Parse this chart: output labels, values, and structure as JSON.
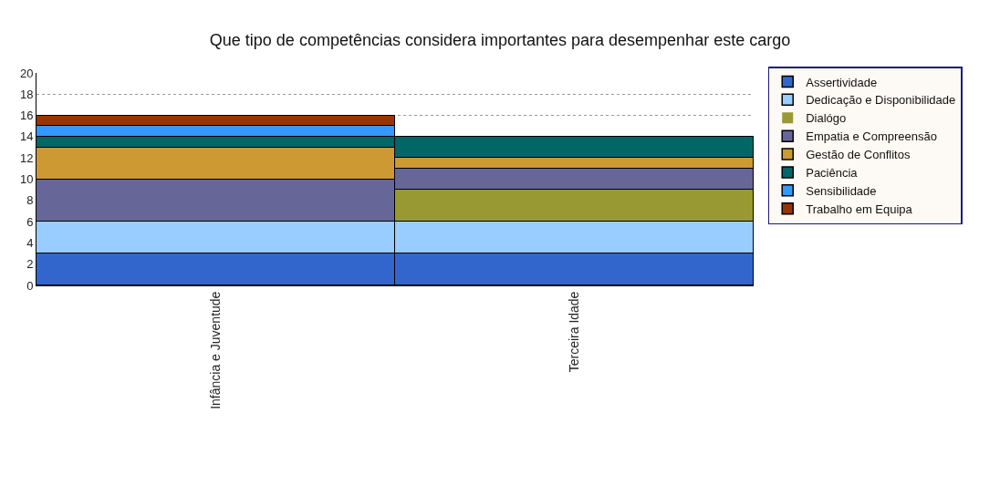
{
  "chart_data": {
    "type": "bar",
    "title": "Que tipo de competências considera importantes para desempenhar este cargo",
    "categories": [
      "Infância e Juventude",
      "Terceira Idade"
    ],
    "stacked": true,
    "ylim": [
      0,
      20
    ],
    "yticks": [
      0,
      2,
      4,
      6,
      8,
      10,
      12,
      14,
      16,
      18,
      20
    ],
    "grid": "y",
    "legend": "right",
    "series": [
      {
        "name": "Assertividade",
        "color": "#3366cc",
        "values": [
          3,
          3
        ]
      },
      {
        "name": "Dedicação e Disponibilidade",
        "color": "#99ccff",
        "values": [
          3,
          3
        ]
      },
      {
        "name": "Dialógo",
        "color": "#999933",
        "values": [
          0,
          3
        ]
      },
      {
        "name": "Empatia e Compreensão",
        "color": "#666699",
        "values": [
          4,
          2
        ]
      },
      {
        "name": "Gestão de Conflitos",
        "color": "#cc9933",
        "values": [
          3,
          1
        ]
      },
      {
        "name": "Paciência",
        "color": "#006666",
        "values": [
          1,
          2
        ]
      },
      {
        "name": "Sensibilidade",
        "color": "#3399ff",
        "values": [
          1,
          0
        ]
      },
      {
        "name": "Trabalho em Equipa",
        "color": "#993300",
        "values": [
          1,
          0
        ]
      }
    ]
  }
}
